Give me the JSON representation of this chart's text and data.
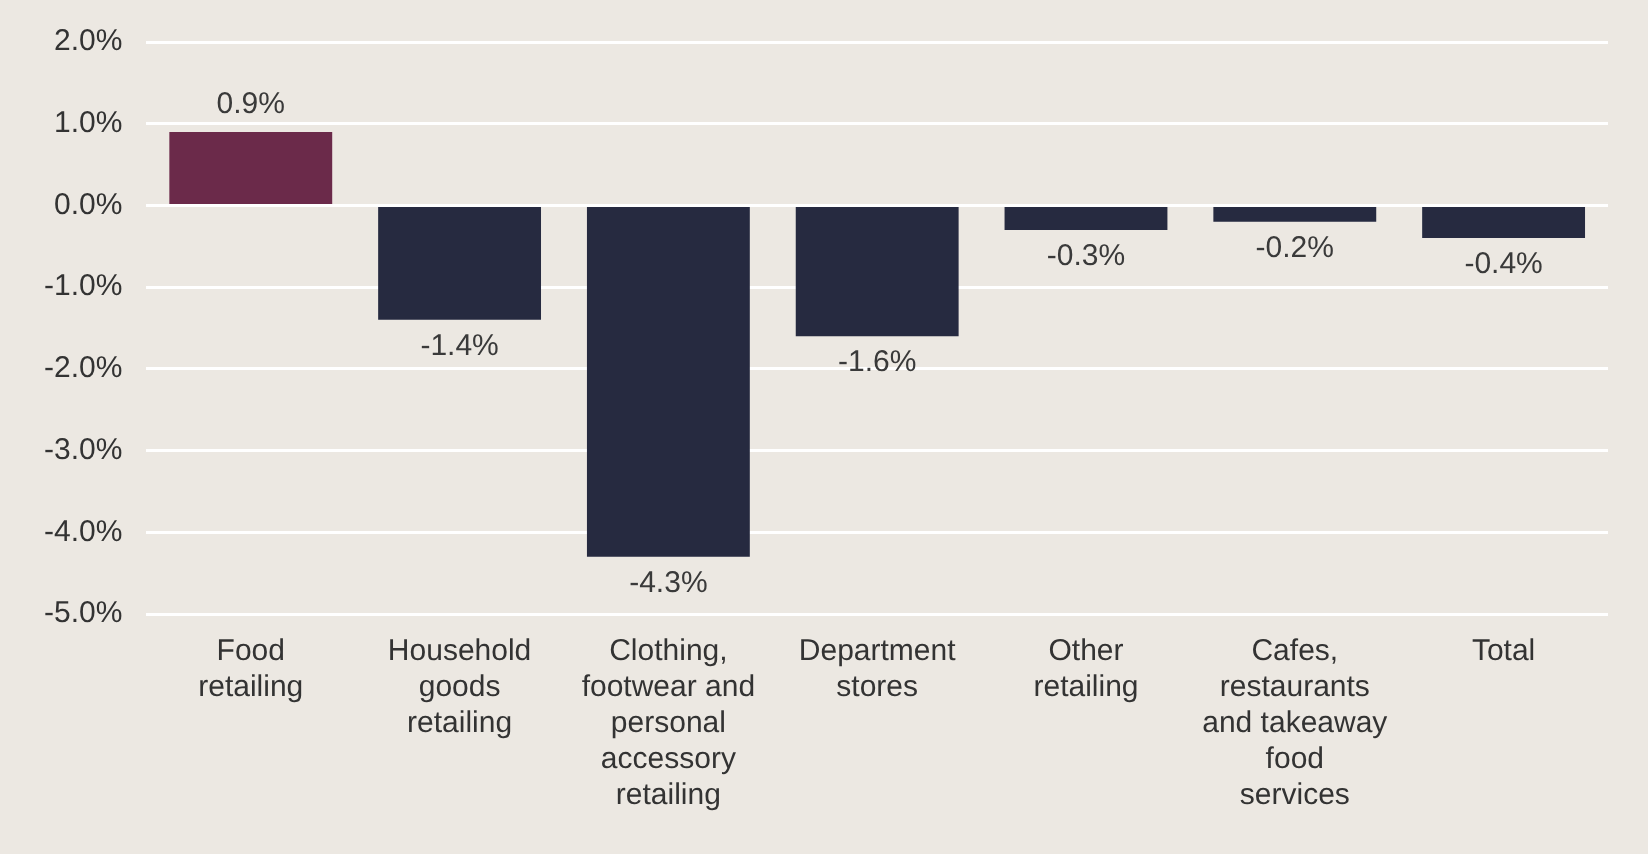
{
  "chart_data": {
    "type": "bar",
    "categories": [
      "Food retailing",
      "Household goods retailing",
      "Clothing, footwear and personal accessory retailing",
      "Department stores",
      "Other retailing",
      "Cafes, restaurants and takeaway food services",
      "Total"
    ],
    "values": [
      0.9,
      -1.4,
      -4.3,
      -1.6,
      -0.3,
      -0.2,
      -0.4
    ],
    "colors": [
      "#6b2a4a",
      "#262a40",
      "#262a40",
      "#262a40",
      "#262a40",
      "#262a40",
      "#262a40"
    ],
    "value_labels": [
      "0.9%",
      "-1.4%",
      "-4.3%",
      "-1.6%",
      "-0.3%",
      "-0.2%",
      "-0.4%"
    ],
    "ylim": [
      -5,
      2
    ],
    "yticks": [
      {
        "value": -5,
        "label": "-5.0%"
      },
      {
        "value": -4,
        "label": "-4.0%"
      },
      {
        "value": -3,
        "label": "-3.0%"
      },
      {
        "value": -2,
        "label": "-2.0%"
      },
      {
        "value": -1,
        "label": "-1.0%"
      },
      {
        "value": 0,
        "label": "0.0%"
      },
      {
        "value": 1,
        "label": "1.0%"
      },
      {
        "value": 2,
        "label": "2.0%"
      }
    ],
    "grid": "y",
    "legend": false
  }
}
